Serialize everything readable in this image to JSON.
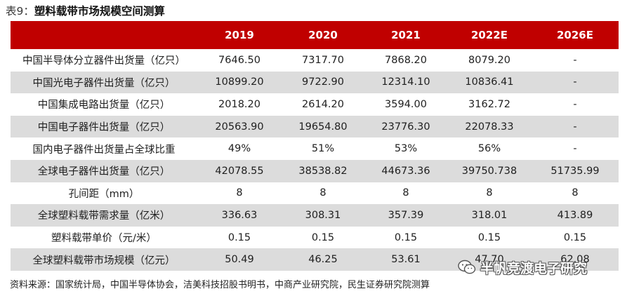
{
  "title": {
    "label": "表9：",
    "text": "塑料载带市场规模空间测算"
  },
  "table": {
    "columns": [
      "",
      "2019",
      "2020",
      "2021",
      "2022E",
      "2026E"
    ],
    "rows": [
      {
        "label": "中国半导体分立器件出货量（亿只）",
        "values": [
          "7646.50",
          "7317.70",
          "7868.20",
          "8079.20",
          "-"
        ]
      },
      {
        "label": "中国光电子器件出货量（亿只）",
        "values": [
          "10899.20",
          "9722.90",
          "12314.10",
          "10836.41",
          "-"
        ]
      },
      {
        "label": "中国集成电路出货量（亿只）",
        "values": [
          "2018.20",
          "2614.20",
          "3594.00",
          "3162.72",
          "-"
        ]
      },
      {
        "label": "中国电子器件出货量（亿只）",
        "values": [
          "20563.90",
          "19654.80",
          "23776.30",
          "22078.33",
          "-"
        ]
      },
      {
        "label": "国内电子器件出货量占全球比重",
        "values": [
          "49%",
          "51%",
          "53%",
          "56%",
          "-"
        ]
      },
      {
        "label": "全球电子器件出货量（亿只）",
        "values": [
          "42078.55",
          "38538.82",
          "44673.36",
          "39750.738",
          "51735.99"
        ]
      },
      {
        "label": "孔间距（mm）",
        "values": [
          "8",
          "8",
          "8",
          "8",
          "8"
        ]
      },
      {
        "label": "全球塑料载带需求量（亿米）",
        "values": [
          "336.63",
          "308.31",
          "357.39",
          "318.01",
          "413.89"
        ]
      },
      {
        "label": "塑料载带单价（元/米）",
        "values": [
          "0.15",
          "0.15",
          "0.15",
          "0.15",
          "0.15"
        ]
      },
      {
        "label": "全球塑料载带市场规模（亿元）",
        "values": [
          "50.49",
          "46.25",
          "53.61",
          "47.70",
          "62.08"
        ]
      }
    ]
  },
  "source": "资料来源：国家统计局，中国半导体协会，洁美科技招股书明书，中商产业研究院，民生证券研究院测算",
  "watermark": {
    "icon": "wechat-icon",
    "text": "半帆竞渡电子研究"
  }
}
